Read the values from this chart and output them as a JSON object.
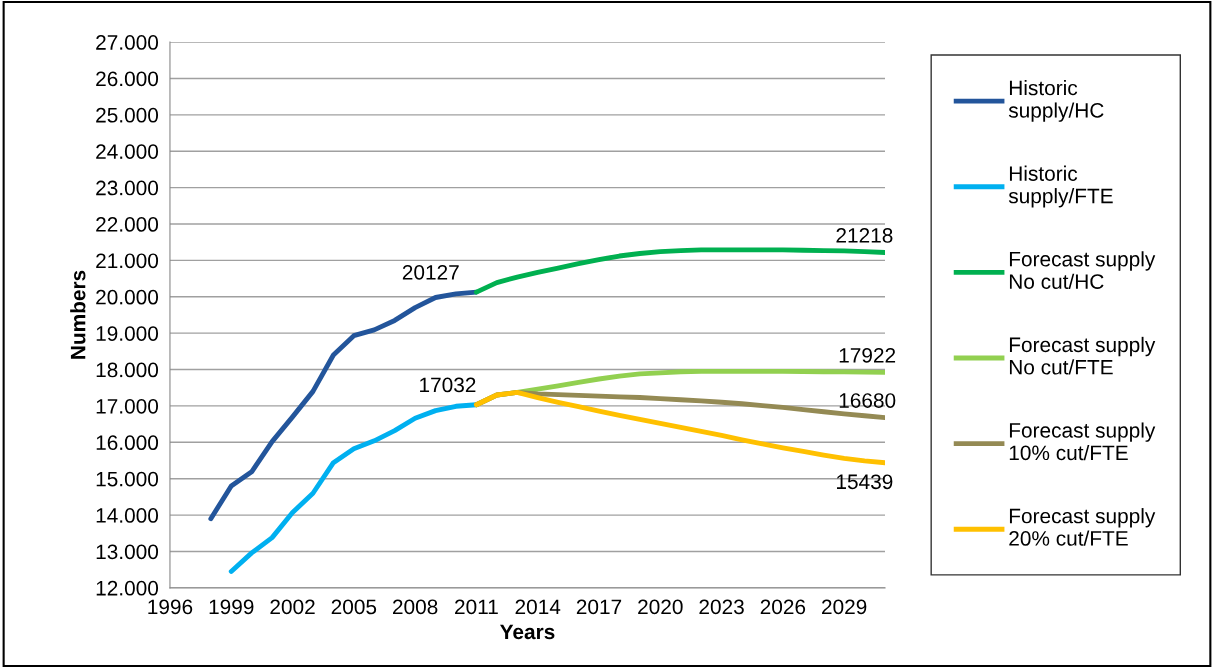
{
  "chart_data": {
    "type": "line",
    "xlabel": "Years",
    "ylabel": "Numbers",
    "xlim": [
      1996,
      2031
    ],
    "xticks": [
      1996,
      1999,
      2002,
      2005,
      2008,
      2011,
      2014,
      2017,
      2020,
      2023,
      2026,
      2029
    ],
    "ylim": [
      12000,
      27000
    ],
    "yticks": [
      {
        "value": 12000,
        "label": "12.000"
      },
      {
        "value": 13000,
        "label": "13.000"
      },
      {
        "value": 14000,
        "label": "14.000"
      },
      {
        "value": 15000,
        "label": "15.000"
      },
      {
        "value": 16000,
        "label": "16.000"
      },
      {
        "value": 17000,
        "label": "17.000"
      },
      {
        "value": 18000,
        "label": "18.000"
      },
      {
        "value": 19000,
        "label": "19.000"
      },
      {
        "value": 20000,
        "label": "20.000"
      },
      {
        "value": 21000,
        "label": "21.000"
      },
      {
        "value": 22000,
        "label": "22.000"
      },
      {
        "value": 23000,
        "label": "23.000"
      },
      {
        "value": 24000,
        "label": "24.000"
      },
      {
        "value": 25000,
        "label": "25.000"
      },
      {
        "value": 26000,
        "label": "26.000"
      },
      {
        "value": 27000,
        "label": "27.000"
      }
    ],
    "grid": "y",
    "legend": "right",
    "marker": "none",
    "line_style": "solid",
    "series": [
      {
        "name": "Historic supply/HC",
        "color": "#23559b",
        "x": [
          1998,
          1999,
          2000,
          2001,
          2002,
          2003,
          2004,
          2005,
          2006,
          2007,
          2008,
          2009,
          2010,
          2011
        ],
        "values": [
          13900,
          14800,
          15190,
          16020,
          16700,
          17400,
          18400,
          18930,
          19090,
          19350,
          19700,
          19980,
          20080,
          20127
        ],
        "value_labels": [
          null,
          null,
          null,
          null,
          null,
          null,
          null,
          null,
          null,
          null,
          null,
          null,
          null,
          "20127"
        ]
      },
      {
        "name": "Historic supply/FTE",
        "color": "#00b0f0",
        "x": [
          1999,
          2000,
          2001,
          2002,
          2003,
          2004,
          2005,
          2006,
          2007,
          2008,
          2009,
          2010,
          2011
        ],
        "values": [
          12450,
          12960,
          13380,
          14070,
          14600,
          15440,
          15820,
          16040,
          16320,
          16660,
          16870,
          16990,
          17032
        ],
        "value_labels": [
          null,
          null,
          null,
          null,
          null,
          null,
          null,
          null,
          null,
          null,
          null,
          null,
          "17032"
        ]
      },
      {
        "name": "Forecast supply No cut/HC",
        "color": "#00b050",
        "x": [
          2011,
          2012,
          2013,
          2014,
          2015,
          2016,
          2017,
          2018,
          2019,
          2020,
          2021,
          2022,
          2023,
          2024,
          2025,
          2026,
          2027,
          2028,
          2029,
          2030,
          2031
        ],
        "values": [
          20127,
          20390,
          20540,
          20670,
          20790,
          20910,
          21020,
          21120,
          21190,
          21240,
          21270,
          21290,
          21290,
          21290,
          21290,
          21290,
          21280,
          21270,
          21260,
          21240,
          21218
        ],
        "value_labels": [
          null,
          null,
          null,
          null,
          null,
          null,
          null,
          null,
          null,
          null,
          null,
          null,
          null,
          null,
          null,
          null,
          null,
          null,
          null,
          null,
          "21218"
        ]
      },
      {
        "name": "Forecast supply No cut/FTE",
        "color": "#92d050",
        "x": [
          2011,
          2012,
          2013,
          2014,
          2015,
          2016,
          2017,
          2018,
          2019,
          2020,
          2021,
          2022,
          2023,
          2024,
          2025,
          2026,
          2027,
          2028,
          2029,
          2030,
          2031
        ],
        "values": [
          17032,
          17300,
          17370,
          17460,
          17550,
          17650,
          17740,
          17820,
          17880,
          17910,
          17940,
          17950,
          17950,
          17950,
          17950,
          17950,
          17945,
          17940,
          17935,
          17930,
          17922
        ],
        "value_labels": [
          null,
          null,
          null,
          null,
          null,
          null,
          null,
          null,
          null,
          null,
          null,
          null,
          null,
          null,
          null,
          null,
          null,
          null,
          null,
          null,
          "17922"
        ]
      },
      {
        "name": "Forecast supply 10% cut/FTE",
        "color": "#948a54",
        "x": [
          2011,
          2012,
          2013,
          2014,
          2015,
          2016,
          2017,
          2018,
          2019,
          2020,
          2021,
          2022,
          2023,
          2024,
          2025,
          2026,
          2027,
          2028,
          2029,
          2030,
          2031
        ],
        "values": [
          17032,
          17300,
          17370,
          17330,
          17310,
          17290,
          17270,
          17250,
          17230,
          17200,
          17170,
          17140,
          17100,
          17060,
          17010,
          16960,
          16900,
          16840,
          16780,
          16730,
          16680
        ],
        "value_labels": [
          null,
          null,
          null,
          null,
          null,
          null,
          null,
          null,
          null,
          null,
          null,
          null,
          null,
          null,
          null,
          null,
          null,
          null,
          null,
          null,
          "16680"
        ]
      },
      {
        "name": "Forecast supply 20% cut/FTE",
        "color": "#ffc000",
        "x": [
          2011,
          2012,
          2013,
          2014,
          2015,
          2016,
          2017,
          2018,
          2019,
          2020,
          2021,
          2022,
          2023,
          2024,
          2025,
          2026,
          2027,
          2028,
          2029,
          2030,
          2031
        ],
        "values": [
          17032,
          17300,
          17370,
          17230,
          17100,
          16980,
          16860,
          16740,
          16630,
          16520,
          16410,
          16300,
          16190,
          16070,
          15960,
          15850,
          15750,
          15650,
          15560,
          15490,
          15439
        ],
        "value_labels": [
          null,
          null,
          null,
          null,
          null,
          null,
          null,
          null,
          null,
          null,
          null,
          null,
          null,
          null,
          null,
          null,
          null,
          null,
          null,
          null,
          "15439"
        ]
      }
    ]
  }
}
